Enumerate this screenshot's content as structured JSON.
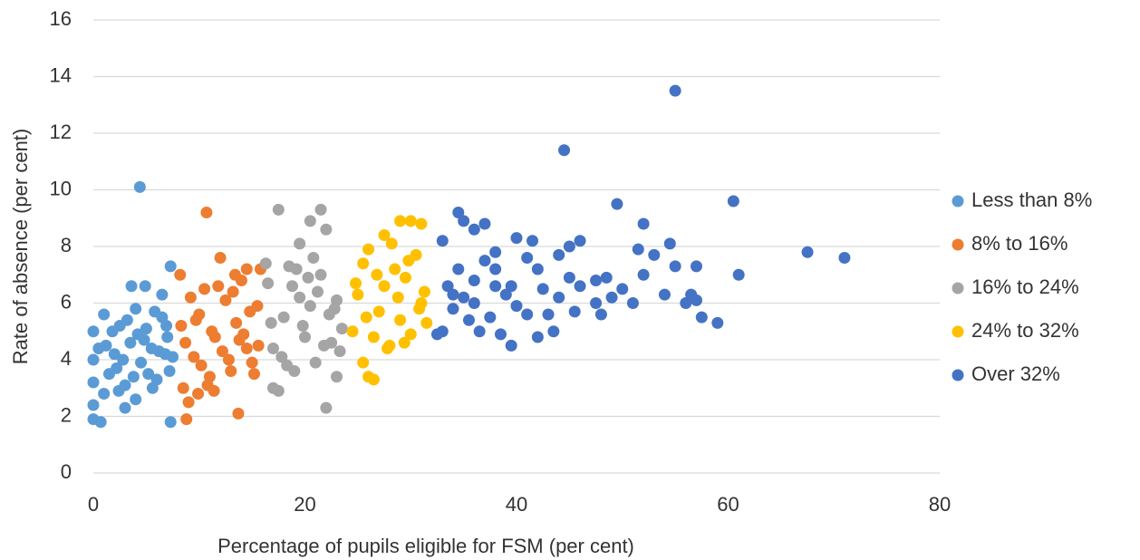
{
  "chart_data": {
    "type": "scatter",
    "x_label": "Percentage of pupils eligible for FSM (per cent)",
    "y_label": "Rate of absence (per cent)",
    "xlim": [
      0,
      80
    ],
    "xticks": [
      0,
      20,
      40,
      60,
      80
    ],
    "ylim": [
      0,
      16
    ],
    "yticks": [
      0,
      2,
      4,
      6,
      8,
      10,
      12,
      14,
      16
    ],
    "grid": true,
    "legend": "right",
    "series": [
      {
        "name": "Less than 8%",
        "color": "#5b9bd5",
        "x": [
          4.4,
          0,
          0,
          0,
          0,
          0,
          0.7,
          7.3,
          7.3,
          3.6,
          4.9,
          6.5,
          3,
          4,
          1,
          1,
          1.5,
          2,
          2.5,
          3,
          3.5,
          4,
          4.5,
          5,
          5.5,
          6,
          6.5,
          7,
          7.5,
          1.2,
          2.2,
          3.2,
          4.2,
          5.2,
          6.2,
          7.2,
          1.8,
          2.8,
          3.8,
          4.8,
          5.8,
          6.8,
          0.5,
          2.4,
          5.6,
          6.9
        ],
        "values": [
          10.1,
          5,
          4,
          3.2,
          2.4,
          1.9,
          1.8,
          1.8,
          7.3,
          6.6,
          6.6,
          6.3,
          2.3,
          2.6,
          5.6,
          2.8,
          3.5,
          4.2,
          5.2,
          3.1,
          4.6,
          5.8,
          3.9,
          5.1,
          4.4,
          3.3,
          5.5,
          4.8,
          4.1,
          4.5,
          3.7,
          5.4,
          4.9,
          3.5,
          4.3,
          3.6,
          5,
          4,
          3.4,
          4.7,
          5.7,
          4.2,
          4.4,
          2.9,
          3,
          5.2
        ]
      },
      {
        "name": "8% to 16%",
        "color": "#ed7d31",
        "x": [
          10.7,
          12,
          8.2,
          13.7,
          8.8,
          9,
          15.8,
          14.5,
          8.5,
          9.5,
          10,
          10.5,
          11,
          11.5,
          12.5,
          13,
          13.5,
          14,
          14.5,
          15,
          15.5,
          8.3,
          9.2,
          10.2,
          11.2,
          12.2,
          13.2,
          14.2,
          15.2,
          8.7,
          9.7,
          10.8,
          11.8,
          12.8,
          13.8,
          14.8,
          15.6,
          9.9,
          11.4,
          13.4
        ],
        "values": [
          9.2,
          7.6,
          7,
          2.1,
          1.9,
          2.5,
          7.2,
          7.2,
          3,
          4.1,
          5.6,
          6.5,
          3.4,
          4.8,
          6.1,
          3.6,
          5.3,
          6.8,
          4.4,
          3.9,
          5.9,
          5.2,
          6.2,
          3.8,
          5,
          4.3,
          6.4,
          4.9,
          3.5,
          4.6,
          5.4,
          3.1,
          6.6,
          4,
          4.7,
          5.7,
          4.5,
          2.8,
          2.9,
          7
        ]
      },
      {
        "name": "16% to 24%",
        "color": "#a5a5a5",
        "x": [
          17.5,
          21.5,
          20.5,
          22,
          19.5,
          22,
          17,
          17.5,
          23,
          16.5,
          17,
          18,
          18.5,
          19,
          19.5,
          20,
          20.5,
          21,
          21.5,
          22.5,
          23,
          23.5,
          16.8,
          17.8,
          18.8,
          19.8,
          20.8,
          21.8,
          22.8,
          16.3,
          18.3,
          20.3,
          22.3,
          23.3,
          19.2,
          21.2
        ],
        "values": [
          9.3,
          9.3,
          8.9,
          8.6,
          8.1,
          2.3,
          3,
          2.9,
          3.4,
          6.7,
          4.4,
          5.5,
          7.3,
          3.6,
          6.2,
          4.8,
          5.9,
          3.9,
          7,
          4.6,
          6.1,
          5.1,
          5.3,
          4.1,
          6.6,
          5.2,
          7.6,
          4.5,
          5.8,
          7.4,
          3.8,
          6.9,
          5.6,
          4.3,
          7.2,
          6.4
        ]
      },
      {
        "name": "24% to 32%",
        "color": "#ffc000",
        "x": [
          29,
          30,
          31,
          25.5,
          26,
          26.5,
          26,
          27.5,
          24.5,
          25,
          25.5,
          26.5,
          27,
          27.5,
          28,
          28.5,
          29,
          29.5,
          30,
          30.5,
          31,
          31.5,
          24.8,
          25.8,
          26.8,
          27.8,
          28.8,
          29.8,
          30.8,
          31.3,
          28.2,
          29.4
        ],
        "values": [
          8.9,
          8.9,
          8.8,
          3.9,
          3.4,
          3.3,
          7.9,
          8.4,
          5,
          6.3,
          7.4,
          4.8,
          5.7,
          6.6,
          4.5,
          7.2,
          5.4,
          6.9,
          4.9,
          7.7,
          6,
          5.3,
          6.7,
          5.5,
          7,
          4.4,
          6.2,
          7.5,
          5.8,
          6.4,
          8.1,
          4.6
        ]
      },
      {
        "name": "Over 32%",
        "color": "#4472c4",
        "x": [
          55,
          44.5,
          49.5,
          60.5,
          52,
          34.5,
          67.5,
          71,
          61,
          59,
          57.5,
          56,
          54.5,
          57,
          51.5,
          50,
          51,
          47.5,
          48,
          43.5,
          42,
          39.5,
          44,
          46,
          45,
          40,
          41.5,
          33,
          36,
          37,
          35,
          38,
          37.5,
          36.5,
          38.5,
          33,
          32.5,
          34,
          35,
          34.5,
          36,
          37,
          38,
          39,
          40,
          41,
          42,
          42.5,
          43,
          44,
          45,
          45.5,
          46,
          47.5,
          48.5,
          49,
          53,
          54,
          55,
          56.5,
          57,
          52,
          36,
          33.5,
          35.5,
          39.5,
          41,
          38,
          34
        ],
        "values": [
          13.5,
          11.4,
          9.5,
          9.6,
          8.8,
          9.2,
          7.8,
          7.6,
          7,
          5.3,
          5.5,
          6,
          8.1,
          7.3,
          7.9,
          6.5,
          6,
          6,
          5.6,
          5,
          4.8,
          4.5,
          6.2,
          8.2,
          8,
          8.3,
          8.2,
          8.2,
          8.6,
          8.8,
          8.9,
          6.6,
          5.5,
          5,
          4.9,
          5,
          4.9,
          5.8,
          6.2,
          7.2,
          6.8,
          7.5,
          7.8,
          6.3,
          5.9,
          7.6,
          7.2,
          6.5,
          5.6,
          7.7,
          6.9,
          5.7,
          6.6,
          6.8,
          6.9,
          6.2,
          7.7,
          6.3,
          7.3,
          6.3,
          6.1,
          7,
          6,
          6.6,
          5.4,
          6.6,
          5.6,
          7.2,
          6.3
        ]
      }
    ]
  }
}
